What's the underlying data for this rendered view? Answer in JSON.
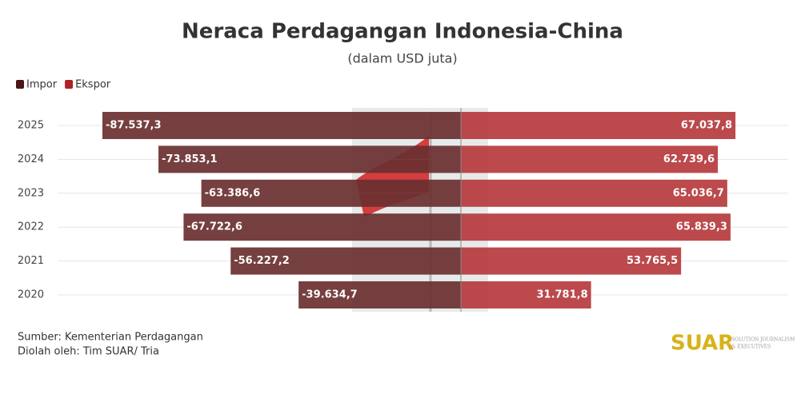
{
  "chart_data": {
    "type": "diverging-bar",
    "title": "Neraca Perdagangan Indonesia-China",
    "subtitle": "(dalam USD juta)",
    "categories": [
      "2025",
      "2024",
      "2023",
      "2022",
      "2021",
      "2020"
    ],
    "series": [
      {
        "name": "Impor",
        "color": "#6a2f30",
        "legend_color": "#4a1516",
        "values": [
          -87537.3,
          -73853.1,
          -63386.6,
          -67722.6,
          -56227.2,
          -39634.7
        ],
        "value_labels": [
          "-87.537,3",
          "-73.853,1",
          "-63.386,6",
          "-67.722,6",
          "-56.227,2",
          "-39.634,7"
        ]
      },
      {
        "name": "Ekspor",
        "color": "#b63a3d",
        "legend_color": "#b02125",
        "values": [
          67037.8,
          62739.6,
          65036.7,
          65839.3,
          53765.5,
          31781.8
        ],
        "value_labels": [
          "67.037,8",
          "62.739,6",
          "65.036,7",
          "65.839,3",
          "53.765,5",
          "31.781,8"
        ]
      }
    ],
    "grid": true,
    "legend": "top-left",
    "source": "Sumber: Kementerian Perdagangan",
    "credit": "Diolah oleh: Tim SUAR/ Tria",
    "logo": "SUAR",
    "logo_tagline": [
      "SOLUTION JOURNALISM",
      "& EXECUTIVES"
    ]
  }
}
